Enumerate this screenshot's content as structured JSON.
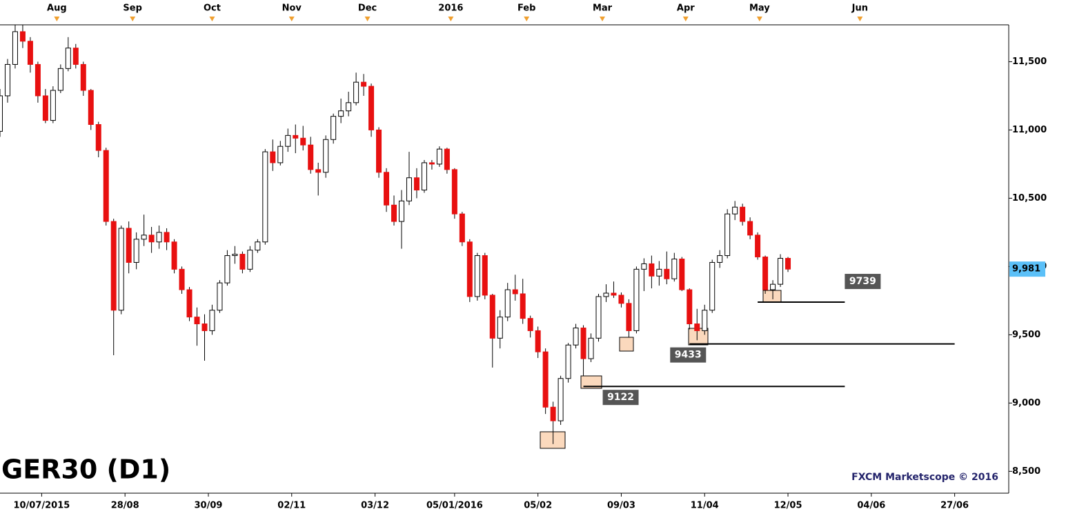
{
  "chart_data": {
    "type": "candlestick",
    "title": "GER30 (D1)",
    "source": "FXCM Marketscope © 2016",
    "up_color": "#ffffff",
    "down_color": "#e81010",
    "xlim": [
      0,
      265
    ],
    "ylim": [
      8340,
      11770
    ],
    "yticks": [
      {
        "value": 8500,
        "label": "8,500"
      },
      {
        "value": 9000,
        "label": "9,000"
      },
      {
        "value": 9500,
        "label": "9,500"
      },
      {
        "value": 10000,
        "label": "10,000"
      },
      {
        "value": 10500,
        "label": "10,500"
      },
      {
        "value": 11000,
        "label": "11,000"
      },
      {
        "value": 11500,
        "label": "11,500"
      }
    ],
    "xticks": [
      {
        "value": 11,
        "label": "10/07/2015"
      },
      {
        "value": 33,
        "label": "28/08"
      },
      {
        "value": 55,
        "label": "30/09"
      },
      {
        "value": 77,
        "label": "02/11"
      },
      {
        "value": 99,
        "label": "03/12"
      },
      {
        "value": 120,
        "label": "05/01/2016"
      },
      {
        "value": 142,
        "label": "05/02"
      },
      {
        "value": 164,
        "label": "09/03"
      },
      {
        "value": 186,
        "label": "11/04"
      },
      {
        "value": 208,
        "label": "12/05"
      },
      {
        "value": 230,
        "label": "04/06"
      },
      {
        "value": 252,
        "label": "27/06"
      }
    ],
    "top_ticks": [
      {
        "value": 15,
        "label": "Aug"
      },
      {
        "value": 35,
        "label": "Sep"
      },
      {
        "value": 56,
        "label": "Oct"
      },
      {
        "value": 77,
        "label": "Nov"
      },
      {
        "value": 97,
        "label": "Dec"
      },
      {
        "value": 119,
        "label": "2016"
      },
      {
        "value": 139,
        "label": "Feb"
      },
      {
        "value": 159,
        "label": "Mar"
      },
      {
        "value": 181,
        "label": "Apr"
      },
      {
        "value": 200.5,
        "label": "May"
      },
      {
        "value": 227,
        "label": "Jun"
      }
    ],
    "last_price": {
      "value": 9981,
      "label": "9,981"
    },
    "levels": [
      {
        "value": 9739,
        "x_start": 200,
        "x_end": 223
      },
      {
        "value": 9433,
        "x_start": 182,
        "x_end": 252
      },
      {
        "value": 9122,
        "x_start": 154,
        "x_end": 223
      }
    ],
    "x": [
      0,
      2,
      4,
      6,
      8,
      10,
      12,
      14,
      16,
      18,
      20,
      22,
      24,
      26,
      28,
      30,
      32,
      34,
      36,
      38,
      40,
      42,
      44,
      46,
      48,
      50,
      52,
      54,
      56,
      58,
      60,
      62,
      64,
      66,
      68,
      70,
      72,
      74,
      76,
      78,
      80,
      82,
      84,
      86,
      88,
      90,
      92,
      94,
      96,
      98,
      100,
      102,
      104,
      106,
      108,
      110,
      112,
      114,
      116,
      118,
      120,
      122,
      124,
      126,
      128,
      130,
      132,
      134,
      136,
      138,
      140,
      142,
      144,
      146,
      148,
      150,
      152,
      154,
      156,
      158,
      160,
      162,
      164,
      166,
      168,
      170,
      172,
      174,
      176,
      178,
      180,
      182,
      184,
      186,
      188,
      190,
      192,
      194,
      196,
      198,
      200,
      202,
      204,
      206,
      208
    ],
    "open": [
      10990,
      11250,
      11480,
      11720,
      11650,
      11480,
      11250,
      11070,
      11290,
      11450,
      11600,
      11480,
      11290,
      11040,
      10850,
      10330,
      9680,
      10280,
      10030,
      10200,
      10230,
      10180,
      10250,
      10180,
      9980,
      9830,
      9630,
      9580,
      9530,
      9680,
      9880,
      10080,
      10090,
      9980,
      10120,
      10180,
      10840,
      10760,
      10880,
      10960,
      10940,
      10890,
      10710,
      10690,
      10930,
      11100,
      11140,
      11200,
      11350,
      11320,
      11000,
      10690,
      10450,
      10330,
      10480,
      10650,
      10560,
      10760,
      10750,
      10860,
      10710,
      10385,
      10180,
      9780,
      10080,
      9790,
      9475,
      9630,
      9830,
      9800,
      9620,
      9530,
      9375,
      8970,
      8870,
      9180,
      9425,
      9550,
      9325,
      9475,
      9780,
      9805,
      9790,
      9730,
      9530,
      9980,
      10020,
      9930,
      9980,
      9910,
      10055,
      9830,
      9580,
      9530,
      9680,
      10030,
      10080,
      10385,
      10435,
      10330,
      10230,
      10070,
      9830,
      9870,
      10060
    ],
    "high": [
      11300,
      11520,
      11770,
      11770,
      11680,
      11500,
      11300,
      11320,
      11480,
      11680,
      11630,
      11500,
      11300,
      11060,
      10870,
      10350,
      10300,
      10330,
      10250,
      10380,
      10290,
      10300,
      10280,
      10200,
      10000,
      9850,
      9700,
      9650,
      9720,
      9900,
      10120,
      10150,
      10110,
      10150,
      10200,
      10860,
      10930,
      10920,
      11010,
      11040,
      11030,
      10950,
      10760,
      10960,
      11120,
      11230,
      11280,
      11420,
      11410,
      11340,
      11020,
      10720,
      10520,
      10560,
      10840,
      10720,
      10780,
      10780,
      10880,
      10870,
      10720,
      10400,
      10200,
      10100,
      10100,
      9800,
      9680,
      9880,
      9940,
      9910,
      9640,
      9560,
      9400,
      9010,
      9200,
      9440,
      9580,
      9570,
      9510,
      9800,
      9870,
      9890,
      9810,
      9760,
      10000,
      10060,
      10080,
      10040,
      10110,
      10100,
      10070,
      9840,
      9690,
      9720,
      10050,
      10120,
      10420,
      10480,
      10460,
      10360,
      10250,
      10080,
      9900,
      10090,
      10070
    ],
    "low": [
      10950,
      11200,
      11450,
      11600,
      11420,
      11200,
      11050,
      11050,
      11270,
      11430,
      11450,
      11250,
      11000,
      10800,
      10300,
      9350,
      9650,
      9950,
      9980,
      10150,
      10100,
      10130,
      10120,
      9950,
      9800,
      9600,
      9420,
      9310,
      9500,
      9660,
      9860,
      10020,
      9950,
      9960,
      10100,
      10160,
      10700,
      10740,
      10840,
      10830,
      10850,
      10680,
      10520,
      10650,
      10900,
      11050,
      11100,
      11180,
      11250,
      10950,
      10650,
      10400,
      10300,
      10130,
      10450,
      10500,
      10540,
      10710,
      10730,
      10680,
      10350,
      10150,
      9740,
      9750,
      9760,
      9260,
      9400,
      9600,
      9750,
      9580,
      9480,
      9330,
      8920,
      8700,
      8840,
      9150,
      9400,
      9200,
      9300,
      9450,
      9740,
      9770,
      9700,
      9480,
      9510,
      9820,
      9840,
      9860,
      9870,
      9890,
      9820,
      9540,
      9460,
      9500,
      9660,
      9990,
      10060,
      10340,
      10300,
      10200,
      10050,
      9800,
      9760,
      9850,
      9960
    ],
    "close": [
      11250,
      11480,
      11720,
      11650,
      11480,
      11250,
      11070,
      11290,
      11450,
      11600,
      11480,
      11290,
      11040,
      10850,
      10330,
      9680,
      10280,
      10030,
      10200,
      10230,
      10180,
      10250,
      10180,
      9980,
      9830,
      9630,
      9580,
      9530,
      9680,
      9880,
      10080,
      10090,
      9980,
      10120,
      10180,
      10840,
      10760,
      10880,
      10960,
      10940,
      10890,
      10710,
      10690,
      10930,
      11100,
      11140,
      11200,
      11350,
      11320,
      11000,
      10690,
      10450,
      10330,
      10480,
      10650,
      10560,
      10760,
      10750,
      10860,
      10710,
      10385,
      10180,
      9780,
      10080,
      9790,
      9475,
      9630,
      9830,
      9800,
      9620,
      9530,
      9375,
      8970,
      8870,
      9180,
      9425,
      9550,
      9325,
      9475,
      9780,
      9805,
      9790,
      9730,
      9530,
      9980,
      10020,
      9930,
      9980,
      9910,
      10055,
      9830,
      9580,
      9530,
      9680,
      10030,
      10080,
      10385,
      10435,
      10330,
      10230,
      10070,
      9830,
      9870,
      10060,
      9981
    ]
  }
}
